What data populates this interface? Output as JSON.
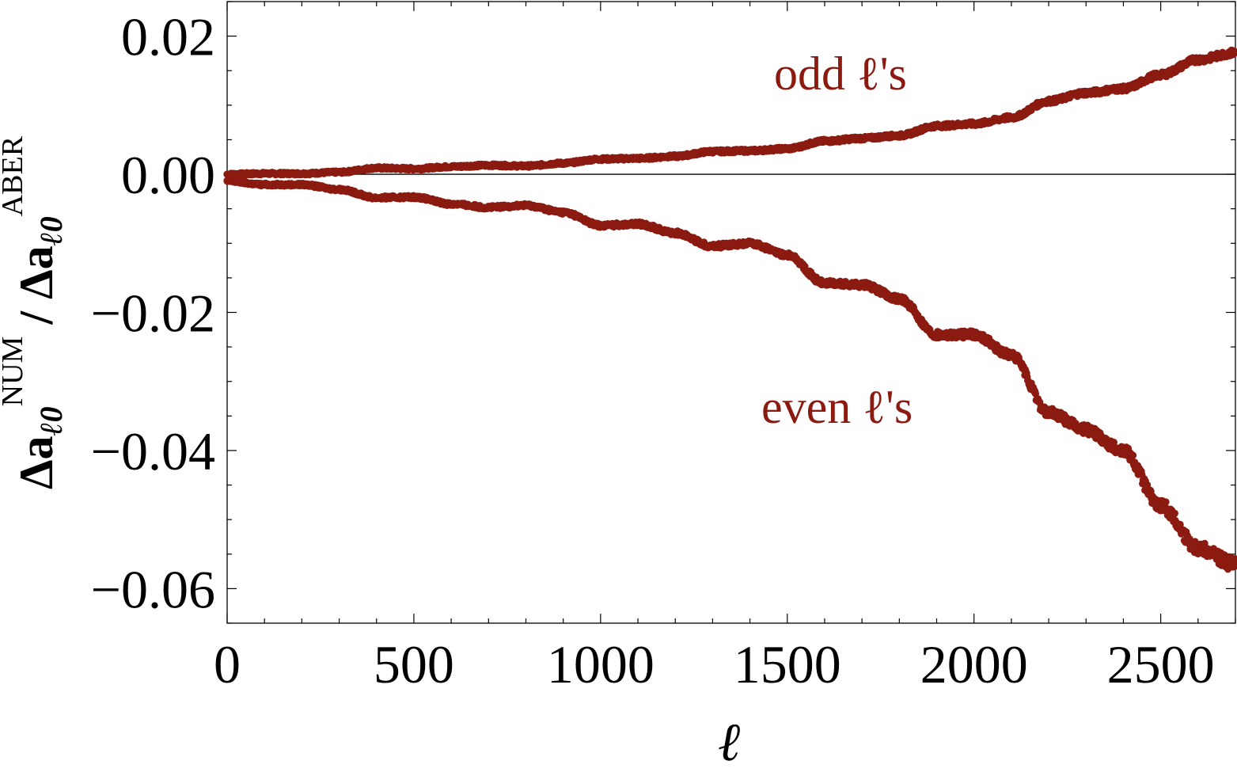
{
  "chart_data": {
    "type": "scatter",
    "xlabel": "ℓ",
    "ylabel": {
      "prefix": "Δa",
      "sub": "ℓ0",
      "sup1": "NUM",
      "sep": " / ",
      "sup2": "ABER"
    },
    "xlim": [
      0,
      2700
    ],
    "ylim": [
      -0.065,
      0.025
    ],
    "x_ticks": [
      0,
      500,
      1000,
      1500,
      2000,
      2500
    ],
    "y_ticks": [
      0.02,
      0.0,
      -0.02,
      -0.04,
      -0.06
    ],
    "x_tick_labels": [
      "0",
      "500",
      "1000",
      "1500",
      "2000",
      "2500"
    ],
    "y_tick_labels": [
      "0.02",
      "0.00",
      "−0.02",
      "−0.04",
      "−0.06"
    ],
    "zero_line": true,
    "grid": false,
    "color": "#8b1a10",
    "annotations": [
      {
        "text": "odd ℓ's",
        "series": "odd"
      },
      {
        "text": "even ℓ's",
        "series": "even"
      }
    ],
    "series": [
      {
        "name": "odd ℓ's",
        "x": [
          0,
          100,
          200,
          300,
          400,
          500,
          600,
          700,
          800,
          900,
          1000,
          1100,
          1200,
          1300,
          1400,
          1500,
          1600,
          1700,
          1800,
          1900,
          2000,
          2100,
          2200,
          2300,
          2400,
          2500,
          2600,
          2700
        ],
        "y": [
          0.0,
          0.0001,
          0.0001,
          0.0003,
          0.0009,
          0.0008,
          0.0011,
          0.0013,
          0.0012,
          0.0016,
          0.0022,
          0.0023,
          0.0026,
          0.0033,
          0.0034,
          0.0037,
          0.0048,
          0.0052,
          0.0056,
          0.007,
          0.0073,
          0.0082,
          0.0106,
          0.0118,
          0.0124,
          0.0144,
          0.0166,
          0.0176
        ]
      },
      {
        "name": "even ℓ's",
        "x": [
          0,
          100,
          200,
          300,
          400,
          500,
          600,
          700,
          800,
          900,
          1000,
          1100,
          1200,
          1300,
          1400,
          1500,
          1600,
          1700,
          1800,
          1900,
          2000,
          2100,
          2200,
          2300,
          2400,
          2500,
          2600,
          2700
        ],
        "y": [
          -0.001,
          -0.0015,
          -0.0015,
          -0.0022,
          -0.0034,
          -0.0033,
          -0.0043,
          -0.0048,
          -0.0045,
          -0.0055,
          -0.0074,
          -0.0072,
          -0.0085,
          -0.0104,
          -0.01,
          -0.0117,
          -0.0158,
          -0.016,
          -0.018,
          -0.0232,
          -0.0232,
          -0.0262,
          -0.0345,
          -0.037,
          -0.04,
          -0.048,
          -0.054,
          -0.0565
        ]
      }
    ]
  }
}
